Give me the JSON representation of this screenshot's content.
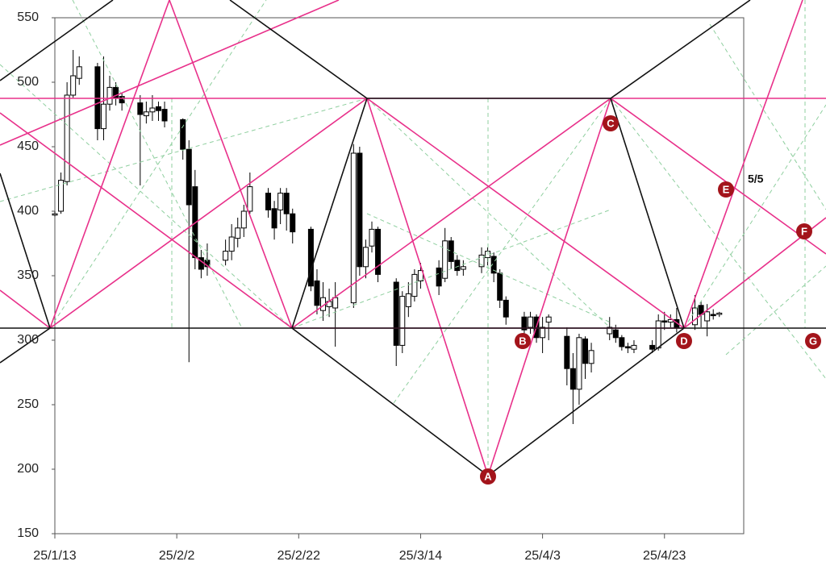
{
  "chart_data": {
    "type": "candlestick",
    "x": [
      "25/1/13",
      "25/1/14",
      "25/1/15",
      "25/1/16",
      "25/1/17",
      "25/1/20",
      "25/1/21",
      "25/1/22",
      "25/1/23",
      "25/1/24",
      "25/1/27",
      "25/1/28",
      "25/1/29",
      "25/1/30",
      "25/1/31",
      "25/2/3",
      "25/2/4",
      "25/2/5",
      "25/2/6",
      "25/2/7",
      "25/2/10",
      "25/2/11",
      "25/2/12",
      "25/2/13",
      "25/2/14",
      "25/2/17",
      "25/2/18",
      "25/2/19",
      "25/2/20",
      "25/2/21",
      "25/2/24",
      "25/2/25",
      "25/2/26",
      "25/2/27",
      "25/2/28",
      "25/3/3",
      "25/3/4",
      "25/3/5",
      "25/3/6",
      "25/3/7",
      "25/3/10",
      "25/3/11",
      "25/3/12",
      "25/3/13",
      "25/3/14",
      "25/3/17",
      "25/3/18",
      "25/3/19",
      "25/3/20",
      "25/3/21",
      "25/3/24",
      "25/3/25",
      "25/3/26",
      "25/3/27",
      "25/3/28",
      "25/3/31",
      "25/4/1",
      "25/4/2",
      "25/4/3",
      "25/4/4",
      "25/4/7",
      "25/4/8",
      "25/4/9",
      "25/4/10",
      "25/4/11",
      "25/4/14",
      "25/4/15",
      "25/4/16",
      "25/4/17",
      "25/4/18",
      "25/4/21",
      "25/4/22",
      "25/4/23",
      "25/4/24",
      "25/4/25",
      "25/4/28",
      "25/4/29",
      "25/4/30",
      "25/5/1",
      "25/5/2"
    ],
    "open": [
      397,
      400,
      423,
      490,
      503,
      512,
      464,
      483,
      496,
      489,
      484,
      474,
      477,
      481,
      479,
      471,
      448,
      419,
      364,
      362,
      362,
      369,
      379,
      387,
      400,
      414,
      402,
      401,
      414,
      398,
      386,
      346,
      323,
      326,
      325,
      329,
      445,
      357,
      373,
      386,
      345,
      296,
      326,
      334,
      346,
      356,
      348,
      377,
      362,
      355,
      357,
      364,
      365,
      352,
      331,
      318,
      310,
      318,
      302,
      314,
      303,
      278,
      262,
      301,
      282,
      305,
      308,
      302,
      295,
      293,
      296,
      294,
      315,
      314,
      316,
      312,
      327,
      315,
      320,
      320
    ],
    "high": [
      400,
      430,
      500,
      525,
      520,
      515,
      520,
      505,
      500,
      492,
      490,
      485,
      490,
      485,
      485,
      472,
      455,
      432,
      370,
      375,
      378,
      390,
      395,
      405,
      430,
      418,
      408,
      418,
      418,
      402,
      388,
      355,
      345,
      340,
      345,
      452,
      450,
      378,
      392,
      388,
      348,
      338,
      345,
      355,
      360,
      362,
      387,
      380,
      366,
      362,
      372,
      372,
      368,
      355,
      334,
      322,
      322,
      320,
      318,
      320,
      310,
      290,
      305,
      303,
      298,
      318,
      312,
      304,
      298,
      300,
      300,
      320,
      322,
      320,
      325,
      335,
      330,
      328,
      324,
      322
    ],
    "low": [
      396,
      398,
      420,
      488,
      498,
      455,
      455,
      478,
      482,
      478,
      420,
      468,
      470,
      470,
      465,
      440,
      283,
      355,
      348,
      350,
      358,
      362,
      372,
      380,
      398,
      395,
      378,
      390,
      385,
      375,
      338,
      320,
      315,
      318,
      295,
      325,
      350,
      348,
      368,
      345,
      280,
      290,
      318,
      330,
      340,
      335,
      345,
      355,
      350,
      350,
      352,
      358,
      345,
      325,
      312,
      300,
      305,
      298,
      290,
      300,
      265,
      235,
      250,
      270,
      275,
      300,
      298,
      292,
      290,
      290,
      290,
      292,
      308,
      310,
      306,
      308,
      310,
      303,
      316,
      318
    ],
    "close": [
      398,
      424,
      490,
      505,
      512,
      464,
      483,
      496,
      488,
      484,
      475,
      477,
      480,
      478,
      470,
      448,
      405,
      364,
      355,
      357,
      369,
      380,
      387,
      400,
      419,
      401,
      387,
      414,
      398,
      384,
      342,
      327,
      333,
      330,
      333,
      445,
      357,
      372,
      386,
      351,
      296,
      334,
      336,
      351,
      354,
      342,
      377,
      361,
      354,
      357,
      366,
      369,
      352,
      331,
      318,
      308,
      318,
      302,
      310,
      318,
      278,
      262,
      302,
      282,
      292,
      310,
      302,
      295,
      294,
      296,
      293,
      315,
      314,
      316,
      310,
      325,
      320,
      322,
      319,
      321
    ],
    "up_color": "#ffffff",
    "down_color": "#000000",
    "ylim": [
      150,
      550
    ],
    "yticks": [
      150,
      200,
      250,
      300,
      350,
      400,
      450,
      500,
      550
    ],
    "xlim": [
      "25/1/13",
      "25/5/6"
    ],
    "xticks": [
      "25/1/13",
      "25/2/2",
      "25/2/22",
      "25/3/14",
      "25/4/3",
      "25/4/23"
    ],
    "annotations": [
      "A",
      "B",
      "C",
      "D",
      "E",
      "F",
      "G",
      "5/5"
    ]
  }
}
